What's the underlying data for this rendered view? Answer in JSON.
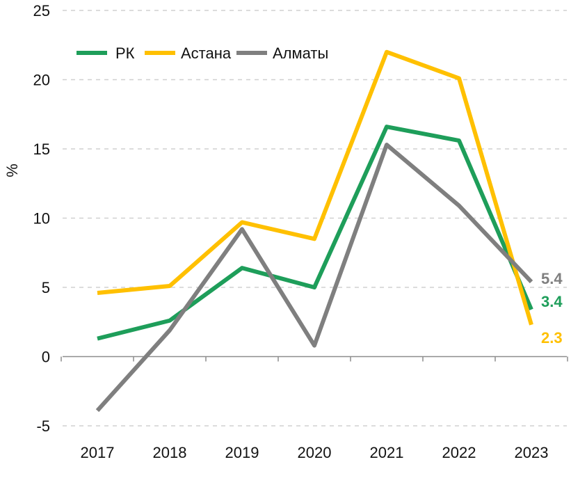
{
  "chart_data": {
    "type": "line",
    "title": "",
    "xlabel": "",
    "ylabel": "%",
    "ylim": [
      -5,
      25
    ],
    "yticks": [
      -5,
      0,
      5,
      10,
      15,
      20,
      25
    ],
    "grid": true,
    "legend_position": "top-left",
    "categories": [
      "2017",
      "2018",
      "2019",
      "2020",
      "2021",
      "2022",
      "2023"
    ],
    "series": [
      {
        "name": "РК",
        "color": "#1e9e5a",
        "values": [
          1.3,
          2.6,
          6.4,
          5.0,
          16.6,
          15.6,
          3.4
        ],
        "end_label": "3.4"
      },
      {
        "name": "Астана",
        "color": "#ffc000",
        "values": [
          4.6,
          5.1,
          9.7,
          8.5,
          22.0,
          20.1,
          2.3
        ],
        "end_label": "2.3"
      },
      {
        "name": "Алматы",
        "color": "#7f7f7f",
        "values": [
          -3.9,
          1.9,
          9.2,
          0.8,
          15.3,
          10.9,
          5.4
        ],
        "end_label": "5.4"
      }
    ]
  }
}
